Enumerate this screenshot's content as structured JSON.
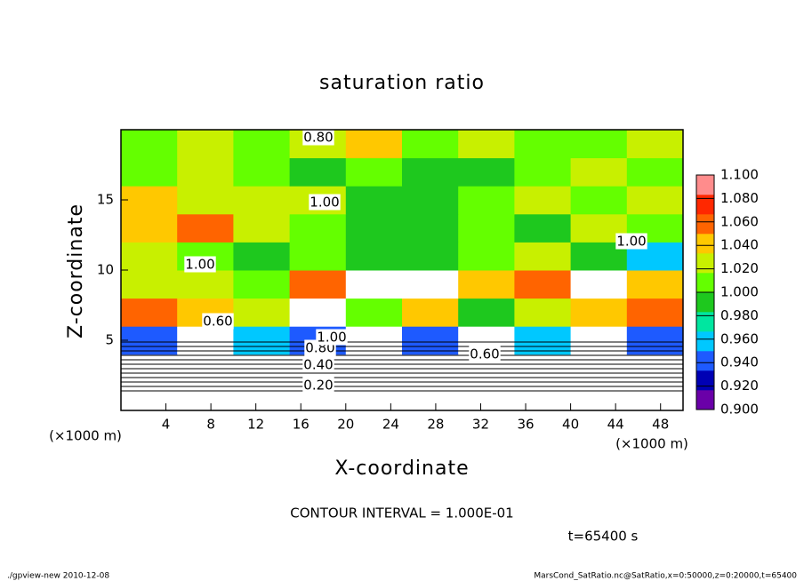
{
  "chart_data": {
    "type": "heatmap",
    "title": "saturation ratio",
    "x_label": "X-coordinate",
    "y_label": "Z-coordinate",
    "x_unit": "(×1000 m)",
    "y_unit": "(×1000 m)",
    "xlim": [
      0,
      50
    ],
    "ylim": [
      0,
      20
    ],
    "xticks": [
      4,
      8,
      12,
      16,
      20,
      24,
      28,
      32,
      36,
      40,
      44,
      48
    ],
    "yticks": [
      5,
      10,
      15
    ],
    "x": [
      0,
      5,
      10,
      15,
      20,
      25,
      30,
      35,
      40,
      45
    ],
    "y": [
      0,
      2,
      4,
      6,
      8,
      10,
      12,
      14,
      16,
      18
    ],
    "z": [
      [
        0.3,
        0.3,
        0.3,
        0.3,
        0.3,
        0.3,
        0.3,
        0.3,
        0.3,
        0.3
      ],
      [
        0.6,
        0.6,
        0.6,
        0.6,
        0.6,
        0.6,
        0.6,
        0.6,
        0.6,
        0.6
      ],
      [
        0.95,
        1.12,
        0.96,
        0.94,
        1.12,
        0.95,
        1.12,
        0.96,
        1.12,
        0.95
      ],
      [
        1.06,
        1.04,
        1.02,
        1.12,
        1.01,
        1.04,
        1.0,
        1.02,
        1.04,
        1.06
      ],
      [
        1.03,
        1.02,
        1.01,
        1.06,
        1.12,
        1.12,
        1.04,
        1.06,
        1.12,
        1.05
      ],
      [
        1.02,
        1.01,
        1.0,
        1.01,
        1.0,
        1.0,
        1.01,
        1.02,
        1.0,
        0.96
      ],
      [
        1.05,
        1.06,
        1.02,
        1.01,
        1.0,
        1.0,
        1.01,
        1.0,
        1.02,
        1.01
      ],
      [
        1.04,
        1.02,
        1.03,
        1.02,
        1.0,
        1.0,
        1.01,
        1.02,
        1.01,
        1.02
      ],
      [
        1.01,
        1.02,
        1.01,
        1.0,
        1.01,
        1.0,
        1.0,
        1.01,
        1.02,
        1.01
      ],
      [
        1.01,
        1.02,
        1.01,
        1.02,
        1.04,
        1.01,
        1.02,
        1.01,
        1.01,
        1.02
      ]
    ],
    "clim": [
      0.9,
      1.1
    ],
    "colors": [
      "#6a00a8",
      "#0000b4",
      "#1e5aff",
      "#00c8ff",
      "#00e6a0",
      "#1ec81e",
      "#64ff00",
      "#c8f000",
      "#ffc800",
      "#ff6400",
      "#ff2800",
      "#ff8c8c"
    ],
    "cticks": [
      {
        "value": 0.9,
        "label": "0.900"
      },
      {
        "value": 0.92,
        "label": "0.920"
      },
      {
        "value": 0.94,
        "label": "0.940"
      },
      {
        "value": 0.96,
        "label": "0.960"
      },
      {
        "value": 0.98,
        "label": "0.980"
      },
      {
        "value": 1.0,
        "label": "1.000"
      },
      {
        "value": 1.02,
        "label": "1.020"
      },
      {
        "value": 1.04,
        "label": "1.040"
      },
      {
        "value": 1.06,
        "label": "1.060"
      },
      {
        "value": 1.08,
        "label": "1.080"
      },
      {
        "value": 1.1,
        "label": "1.100"
      }
    ],
    "contour_labels": [
      "0.20",
      "0.40",
      "0.60",
      "0.80",
      "1.00",
      "0.60",
      "1.00",
      "1.00",
      "1.00",
      "0.80"
    ],
    "contour_interval": "CONTOUR INTERVAL = 1.000E-01",
    "time_label": "t=65400 s",
    "footer_left": "./gpview-new  2010-12-08",
    "footer_right": "MarsCond_SatRatio.nc@SatRatio,x=0:50000,z=0:20000,t=65400"
  }
}
